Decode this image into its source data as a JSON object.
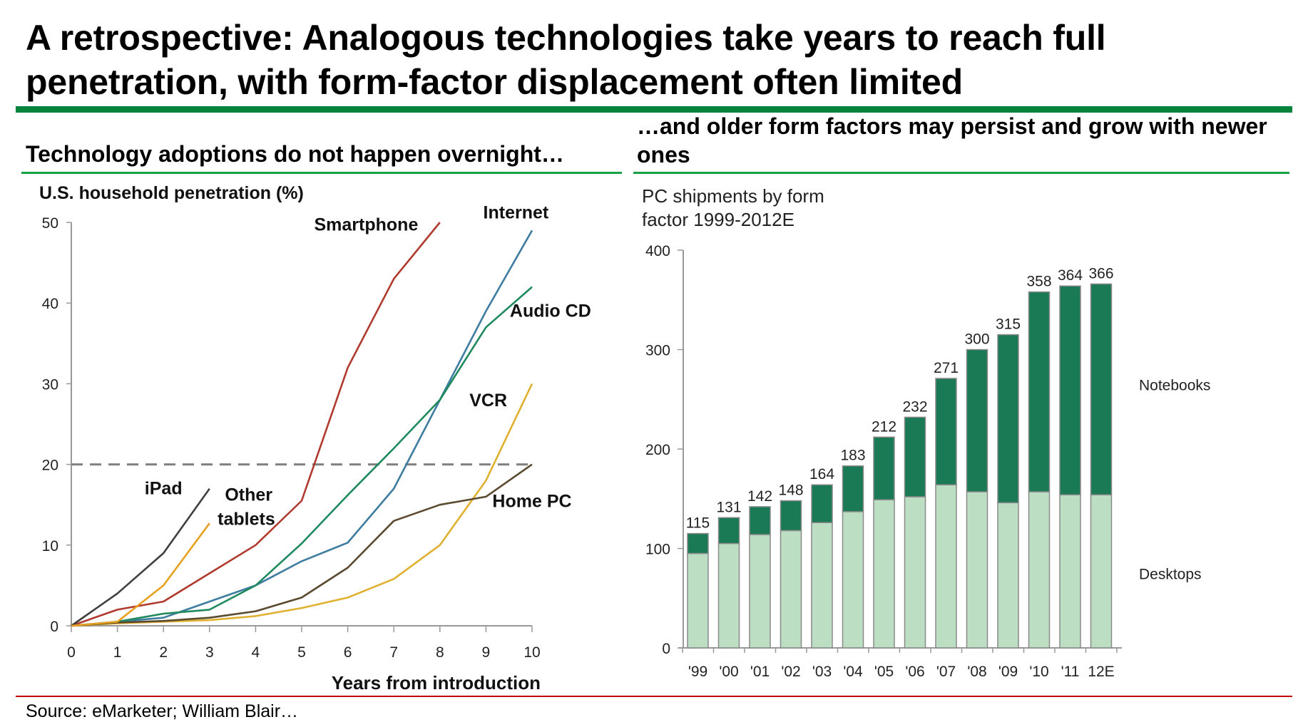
{
  "page": {
    "title": "A retrospective: Analogous technologies take years to reach full penetration, with form-factor displacement often limited",
    "left_heading": "Technology adoptions do not happen overnight…",
    "right_heading": "…and older form factors may persist and grow with newer ones",
    "source": "Source: eMarketer; William Blair…",
    "colors": {
      "title_rule": "#00843d",
      "section_rule": "#1aa049",
      "footer_rule": "#c00000"
    }
  },
  "chart_data": [
    {
      "type": "line",
      "title": "U.S. household penetration (%)",
      "xlabel": "Years from introduction",
      "ylabel": "U.S. household penetration (%)",
      "x": [
        0,
        1,
        2,
        3,
        4,
        5,
        6,
        7,
        8,
        9,
        10
      ],
      "xlim": [
        0,
        10
      ],
      "ylim": [
        0,
        50
      ],
      "yticks": [
        0,
        10,
        20,
        30,
        40,
        50
      ],
      "xticks": [
        0,
        1,
        2,
        3,
        4,
        5,
        6,
        7,
        8,
        9,
        10
      ],
      "grid": false,
      "reference_line": {
        "y": 20,
        "style": "dashed"
      },
      "series": [
        {
          "name": "Smartphone",
          "color": "#b03a2e",
          "values": [
            0,
            2,
            3,
            6.5,
            10,
            15.5,
            32,
            43,
            50,
            null,
            null
          ]
        },
        {
          "name": "Internet",
          "color": "#3e7ca0",
          "values": [
            0,
            0.5,
            1,
            3,
            5,
            8,
            10.3,
            17,
            28,
            39,
            49
          ]
        },
        {
          "name": "Audio CD",
          "color": "#1e8a5e",
          "values": [
            0,
            0.5,
            1.5,
            2,
            5,
            10.2,
            16.2,
            22,
            28,
            37,
            42
          ]
        },
        {
          "name": "VCR",
          "color": "#e0b030",
          "values": [
            0,
            0.3,
            0.5,
            0.7,
            1.2,
            2.2,
            3.5,
            5.8,
            10,
            18,
            30
          ]
        },
        {
          "name": "Home PC",
          "color": "#5a4a30",
          "values": [
            0,
            0.4,
            0.6,
            1,
            1.8,
            3.5,
            7.2,
            13,
            15,
            16,
            20
          ]
        },
        {
          "name": "iPad",
          "color": "#404040",
          "values": [
            0,
            4,
            9,
            17,
            null,
            null,
            null,
            null,
            null,
            null,
            null
          ]
        },
        {
          "name": "Other tablets",
          "color": "#e8a020",
          "values": [
            0,
            0.5,
            5,
            12.7,
            null,
            null,
            null,
            null,
            null,
            null,
            null
          ]
        }
      ],
      "labels": [
        {
          "text": "Smartphone",
          "x": 6.4,
          "y": 49
        },
        {
          "text": "Internet",
          "x": 9.65,
          "y": 50.5
        },
        {
          "text": "Audio CD",
          "x": 10.4,
          "y": 38.3
        },
        {
          "text": "VCR",
          "x": 9.05,
          "y": 27.2
        },
        {
          "text": "Home PC",
          "x": 10.0,
          "y": 14.7
        },
        {
          "text": "iPad",
          "x": 2.0,
          "y": 16.3
        },
        {
          "text": "Other",
          "x": 3.85,
          "y": 15.5
        },
        {
          "text": "tablets",
          "x": 3.8,
          "y": 12.5
        }
      ]
    },
    {
      "type": "bar",
      "stacked": true,
      "title": "PC shipments by form factor 1999-2012E",
      "categories": [
        "'99",
        "'00",
        "'01",
        "'02",
        "'03",
        "'04",
        "'05",
        "'06",
        "'07",
        "'08",
        "'09",
        "'10",
        "'11",
        "12E"
      ],
      "totals": [
        115,
        131,
        142,
        148,
        164,
        183,
        212,
        232,
        271,
        300,
        315,
        358,
        364,
        366
      ],
      "series": [
        {
          "name": "Desktops",
          "color": "#bcdfc4",
          "values": [
            95,
            105,
            114,
            118,
            126,
            137,
            149,
            152,
            164,
            157,
            146,
            157,
            154,
            154
          ]
        },
        {
          "name": "Notebooks",
          "color": "#1a7a56",
          "values": [
            20,
            26,
            28,
            30,
            38,
            46,
            63,
            80,
            107,
            143,
            169,
            201,
            210,
            212
          ]
        }
      ],
      "ylim": [
        0,
        400
      ],
      "yticks": [
        0,
        100,
        200,
        300,
        400
      ],
      "grid": false,
      "legend": "right, inline labels"
    }
  ]
}
